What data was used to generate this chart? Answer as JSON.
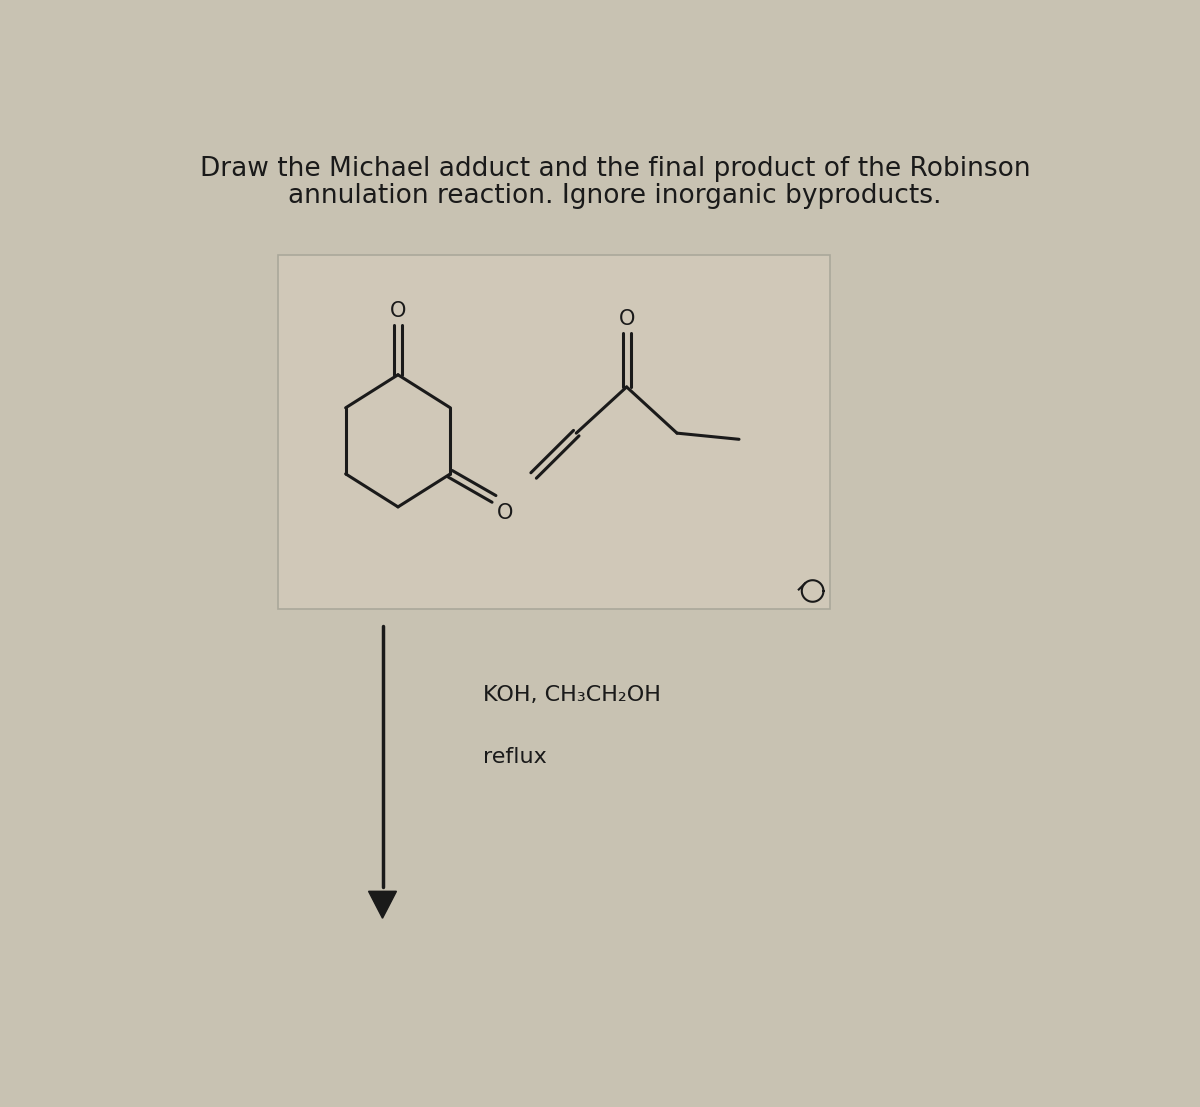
{
  "title_line1": "Draw the Michael adduct and the final product of the Robinson",
  "title_line2": "annulation reaction. Ignore inorganic byproducts.",
  "condition_line1": "KOH, CH₃CH₂OH",
  "condition_line2": "reflux",
  "bg_color": "#c8c2b2",
  "box_bg": "#d0c8b8",
  "box_edge": "#aaa89a",
  "line_color": "#1a1a1a",
  "text_color": "#1a1a1a",
  "title_fontsize": 19,
  "cond_fontsize": 16,
  "figwidth": 12.0,
  "figheight": 11.07
}
